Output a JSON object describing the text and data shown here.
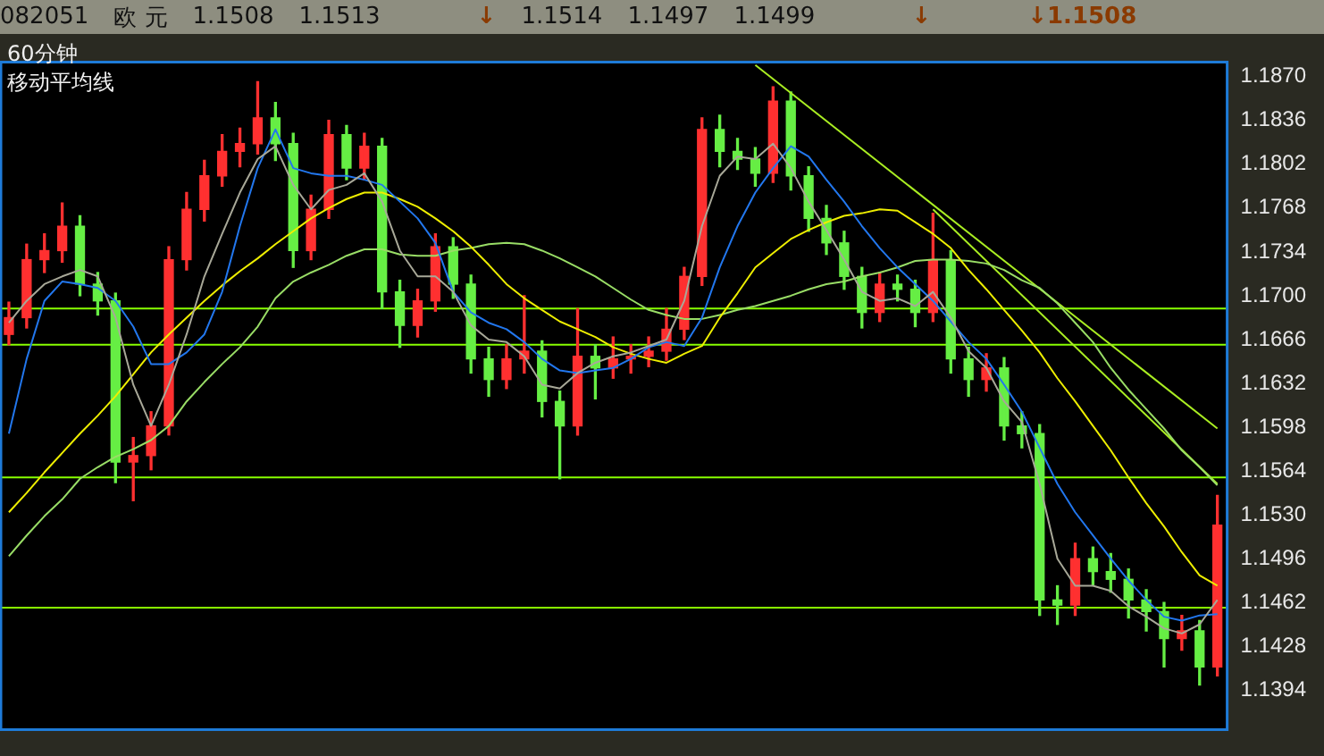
{
  "chart_data": {
    "type": "candlestick",
    "title": "60分钟",
    "subtitle": "移动平均线",
    "annotations": [
      "082051",
      "欧 元",
      "1.1508",
      "1.1513",
      "↓",
      "1.1514",
      "1.1497",
      "1.1499",
      "↓",
      "↓1.1508"
    ],
    "categories": [
      null,
      null,
      null,
      null,
      null,
      null,
      null,
      null,
      null,
      null,
      null,
      null,
      null,
      null,
      null,
      null,
      null,
      null,
      null,
      null,
      null,
      null,
      null,
      null,
      null,
      null,
      null,
      null,
      null,
      null,
      null,
      null,
      null,
      null,
      null,
      null,
      null,
      null,
      null,
      null,
      null,
      null,
      null,
      null,
      null,
      null,
      null,
      null,
      null,
      null,
      null,
      null,
      null,
      null,
      null,
      null,
      null,
      null,
      null,
      null,
      null,
      null,
      null,
      null,
      null,
      null,
      null,
      null,
      null
    ],
    "ohlc": [
      [
        1.167,
        1.1695,
        1.1662,
        1.1683
      ],
      [
        1.1683,
        1.174,
        1.1675,
        1.1728
      ],
      [
        1.1728,
        1.1748,
        1.1718,
        1.1735
      ],
      [
        1.1735,
        1.1772,
        1.1726,
        1.1754
      ],
      [
        1.1754,
        1.1762,
        1.17,
        1.1709
      ],
      [
        1.1709,
        1.1718,
        1.1685,
        1.1696
      ],
      [
        1.1696,
        1.1702,
        1.1555,
        1.1571
      ],
      [
        1.1571,
        1.159,
        1.1541,
        1.1576
      ],
      [
        1.1576,
        1.161,
        1.1565,
        1.1599
      ],
      [
        1.1599,
        1.1738,
        1.1592,
        1.1728
      ],
      [
        1.1728,
        1.178,
        1.172,
        1.1767
      ],
      [
        1.1767,
        1.1805,
        1.1758,
        1.1793
      ],
      [
        1.1793,
        1.1825,
        1.1785,
        1.1812
      ],
      [
        1.1812,
        1.183,
        1.18,
        1.1818
      ],
      [
        1.1818,
        1.1866,
        1.181,
        1.1838
      ],
      [
        1.1838,
        1.185,
        1.1805,
        1.1818
      ],
      [
        1.1818,
        1.1826,
        1.1722,
        1.1735
      ],
      [
        1.1735,
        1.1778,
        1.1728,
        1.1767
      ],
      [
        1.1767,
        1.1836,
        1.176,
        1.1825
      ],
      [
        1.1825,
        1.1832,
        1.179,
        1.1799
      ],
      [
        1.1799,
        1.1826,
        1.179,
        1.1816
      ],
      [
        1.1816,
        1.1822,
        1.169,
        1.1703
      ],
      [
        1.1703,
        1.1712,
        1.166,
        1.1677
      ],
      [
        1.1677,
        1.1705,
        1.1668,
        1.1696
      ],
      [
        1.1696,
        1.1748,
        1.1688,
        1.1738
      ],
      [
        1.1738,
        1.1745,
        1.1698,
        1.1709
      ],
      [
        1.1709,
        1.1716,
        1.164,
        1.1651
      ],
      [
        1.1651,
        1.166,
        1.1622,
        1.1635
      ],
      [
        1.1635,
        1.1662,
        1.1628,
        1.1651
      ],
      [
        1.1651,
        1.17,
        1.164,
        1.1657
      ],
      [
        1.1657,
        1.1665,
        1.1606,
        1.1618
      ],
      [
        1.1618,
        1.1626,
        1.1558,
        1.1599
      ],
      [
        1.1599,
        1.169,
        1.1592,
        1.1653
      ],
      [
        1.1653,
        1.1662,
        1.162,
        1.1644
      ],
      [
        1.1644,
        1.1668,
        1.1636,
        1.1651
      ],
      [
        1.1651,
        1.1662,
        1.164,
        1.1653
      ],
      [
        1.1653,
        1.1668,
        1.1645,
        1.1657
      ],
      [
        1.1657,
        1.169,
        1.165,
        1.1674
      ],
      [
        1.1674,
        1.1722,
        1.1666,
        1.1715
      ],
      [
        1.1715,
        1.1838,
        1.1708,
        1.1829
      ],
      [
        1.1829,
        1.184,
        1.18,
        1.1812
      ],
      [
        1.1812,
        1.1822,
        1.1798,
        1.1806
      ],
      [
        1.1806,
        1.1815,
        1.1785,
        1.1795
      ],
      [
        1.1795,
        1.1862,
        1.1788,
        1.1851
      ],
      [
        1.1851,
        1.1858,
        1.1782,
        1.1793
      ],
      [
        1.1793,
        1.18,
        1.175,
        1.176
      ],
      [
        1.176,
        1.177,
        1.1732,
        1.1741
      ],
      [
        1.1741,
        1.175,
        1.1705,
        1.1715
      ],
      [
        1.1715,
        1.1722,
        1.1675,
        1.1687
      ],
      [
        1.1687,
        1.1718,
        1.168,
        1.1709
      ],
      [
        1.1709,
        1.1716,
        1.1696,
        1.1705
      ],
      [
        1.1705,
        1.1712,
        1.1676,
        1.1687
      ],
      [
        1.1687,
        1.1764,
        1.168,
        1.1728
      ],
      [
        1.1728,
        1.1735,
        1.164,
        1.1651
      ],
      [
        1.1651,
        1.166,
        1.1622,
        1.1635
      ],
      [
        1.1635,
        1.1655,
        1.1626,
        1.1644
      ],
      [
        1.1644,
        1.1652,
        1.1588,
        1.1599
      ],
      [
        1.1599,
        1.161,
        1.1582,
        1.1593
      ],
      [
        1.1593,
        1.16,
        1.1452,
        1.1464
      ],
      [
        1.1464,
        1.1475,
        1.1445,
        1.146
      ],
      [
        1.146,
        1.1508,
        1.1452,
        1.1496
      ],
      [
        1.1496,
        1.1505,
        1.1475,
        1.1486
      ],
      [
        1.1486,
        1.15,
        1.147,
        1.148
      ],
      [
        1.148,
        1.1488,
        1.145,
        1.1464
      ],
      [
        1.1464,
        1.1472,
        1.144,
        1.1455
      ],
      [
        1.1455,
        1.1462,
        1.1412,
        1.1434
      ],
      [
        1.1434,
        1.1452,
        1.1425,
        1.144
      ],
      [
        1.144,
        1.1448,
        1.1398,
        1.1412
      ],
      [
        1.1412,
        1.1545,
        1.1405,
        1.1522
      ]
    ],
    "colors": [
      "#ff3030",
      "#ff3030",
      "#ff3030",
      "#ff3030",
      "#66ee44",
      "#66ee44",
      "#66ee44",
      "#ff3030",
      "#ff3030",
      "#ff3030",
      "#ff3030",
      "#ff3030",
      "#ff3030",
      "#ff3030",
      "#ff3030",
      "#66ee44",
      "#66ee44",
      "#ff3030",
      "#ff3030",
      "#66ee44",
      "#ff3030",
      "#66ee44",
      "#66ee44",
      "#ff3030",
      "#ff3030",
      "#66ee44",
      "#66ee44",
      "#66ee44",
      "#ff3030",
      "#ff3030",
      "#66ee44",
      "#66ee44",
      "#ff3030",
      "#66ee44",
      "#ff3030",
      "#ff3030",
      "#ff3030",
      "#ff3030",
      "#ff3030",
      "#ff3030",
      "#66ee44",
      "#66ee44",
      "#66ee44",
      "#ff3030",
      "#66ee44",
      "#66ee44",
      "#66ee44",
      "#66ee44",
      "#66ee44",
      "#ff3030",
      "#66ee44",
      "#66ee44",
      "#ff3030",
      "#66ee44",
      "#66ee44",
      "#ff3030",
      "#66ee44",
      "#66ee44",
      "#66ee44",
      "#66ee44",
      "#ff3030",
      "#66ee44",
      "#66ee44",
      "#66ee44",
      "#66ee44",
      "#66ee44",
      "#ff3030",
      "#66ee44",
      "#ff3030"
    ],
    "series": [
      {
        "type": "line",
        "color": "#a8a898",
        "values": [
          1.1679,
          1.1696,
          1.1709,
          1.1715,
          1.172,
          1.1715,
          1.1683,
          1.1631,
          1.1599,
          1.1631,
          1.167,
          1.1715,
          1.1748,
          1.178,
          1.1806,
          1.1816,
          1.1786,
          1.1767,
          1.1782,
          1.1786,
          1.1795,
          1.1773,
          1.1735,
          1.1715,
          1.1715,
          1.1703,
          1.1677,
          1.1666,
          1.1664,
          1.1653,
          1.1631,
          1.1628,
          1.164,
          1.1648,
          1.1653,
          1.1656,
          1.1661,
          1.1666,
          1.1696,
          1.1754,
          1.1793,
          1.1808,
          1.1806,
          1.1818,
          1.1799,
          1.1773,
          1.1751,
          1.1728,
          1.1703,
          1.1696,
          1.1698,
          1.1692,
          1.1703,
          1.1683,
          1.1657,
          1.1644,
          1.1618,
          1.1602,
          1.1554,
          1.1496,
          1.1475,
          1.1475,
          1.1471,
          1.1459,
          1.1451,
          1.1442,
          1.1438,
          1.1445,
          1.1464
        ]
      },
      {
        "type": "line",
        "color": "#2277ee",
        "values": [
          1.1593,
          1.1651,
          1.1696,
          1.1711,
          1.1709,
          1.1706,
          1.1696,
          1.1676,
          1.1647,
          1.1647,
          1.1656,
          1.167,
          1.1703,
          1.1754,
          1.1799,
          1.1829,
          1.1799,
          1.1795,
          1.1793,
          1.1793,
          1.179,
          1.1786,
          1.1773,
          1.176,
          1.1741,
          1.1703,
          1.1687,
          1.1679,
          1.1674,
          1.1664,
          1.1651,
          1.1642,
          1.164,
          1.1642,
          1.1644,
          1.1651,
          1.166,
          1.1664,
          1.1661,
          1.1683,
          1.1722,
          1.1754,
          1.178,
          1.1799,
          1.1816,
          1.1808,
          1.179,
          1.1773,
          1.1754,
          1.1737,
          1.1722,
          1.1709,
          1.1696,
          1.168,
          1.1664,
          1.1651,
          1.1631,
          1.161,
          1.1582,
          1.1554,
          1.1532,
          1.1514,
          1.1496,
          1.1479,
          1.1464,
          1.1451,
          1.1448,
          1.1452,
          1.1453
        ]
      },
      {
        "type": "line",
        "color": "#eeee00",
        "values": [
          1.1532,
          1.1547,
          1.1563,
          1.1578,
          1.1593,
          1.1607,
          1.1622,
          1.1639,
          1.1656,
          1.167,
          1.1683,
          1.1696,
          1.1708,
          1.1719,
          1.1729,
          1.174,
          1.175,
          1.176,
          1.1768,
          1.1775,
          1.178,
          1.178,
          1.1775,
          1.1769,
          1.176,
          1.175,
          1.1738,
          1.1724,
          1.1709,
          1.1698,
          1.1689,
          1.168,
          1.1674,
          1.1668,
          1.166,
          1.1655,
          1.1651,
          1.1648,
          1.1655,
          1.1661,
          1.1683,
          1.1702,
          1.1722,
          1.1733,
          1.1744,
          1.1751,
          1.1757,
          1.1762,
          1.1764,
          1.1767,
          1.1766,
          1.1757,
          1.1748,
          1.1737,
          1.172,
          1.1705,
          1.1689,
          1.1673,
          1.1656,
          1.1636,
          1.1618,
          1.1599,
          1.158,
          1.1559,
          1.1539,
          1.1521,
          1.1501,
          1.1483,
          1.1475
        ]
      },
      {
        "type": "line",
        "color": "#99dd66",
        "values": [
          1.1498,
          1.1514,
          1.1529,
          1.1542,
          1.1558,
          1.1567,
          1.1575,
          1.1581,
          1.1588,
          1.1599,
          1.1618,
          1.1633,
          1.1647,
          1.166,
          1.1676,
          1.1698,
          1.1711,
          1.1718,
          1.1724,
          1.1731,
          1.1736,
          1.1736,
          1.1732,
          1.1731,
          1.1731,
          1.1735,
          1.1737,
          1.174,
          1.1741,
          1.174,
          1.1735,
          1.1729,
          1.1722,
          1.1715,
          1.1706,
          1.1697,
          1.1689,
          1.1685,
          1.1682,
          1.1682,
          1.1685,
          1.1689,
          1.1692,
          1.1696,
          1.17,
          1.1705,
          1.1709,
          1.1711,
          1.1715,
          1.1718,
          1.1722,
          1.1727,
          1.1728,
          1.1728,
          1.1727,
          1.1725,
          1.172,
          1.1712,
          1.1706,
          1.1694,
          1.1679,
          1.1664,
          1.1644,
          1.1627,
          1.1612,
          1.1597,
          1.158,
          1.1567,
          1.1553
        ]
      },
      {
        "type": "line",
        "color": "#aaee22",
        "values": [
          null,
          null,
          null,
          null,
          null,
          null,
          null,
          null,
          null,
          null,
          null,
          null,
          null,
          null,
          null,
          null,
          null,
          null,
          null,
          null,
          null,
          null,
          null,
          null,
          null,
          null,
          null,
          null,
          null,
          null,
          null,
          null,
          null,
          null,
          null,
          null,
          null,
          null,
          null,
          null,
          null,
          null,
          1.1879,
          null,
          null,
          null,
          null,
          null,
          null,
          null,
          null,
          null,
          null,
          null,
          null,
          null,
          null,
          null,
          null,
          null,
          null,
          null,
          null,
          null,
          null,
          null,
          null,
          null,
          1.1597
        ]
      },
      {
        "type": "line",
        "color": "#aaee22",
        "values": [
          null,
          null,
          null,
          null,
          null,
          null,
          null,
          null,
          null,
          null,
          null,
          null,
          null,
          null,
          null,
          null,
          null,
          null,
          null,
          null,
          null,
          null,
          null,
          null,
          null,
          null,
          null,
          null,
          null,
          null,
          null,
          null,
          null,
          null,
          null,
          null,
          null,
          null,
          null,
          null,
          null,
          null,
          null,
          null,
          null,
          null,
          null,
          null,
          null,
          null,
          null,
          null,
          1.1767,
          null,
          null,
          null,
          null,
          null,
          null,
          null,
          null,
          null,
          null,
          null,
          null,
          null,
          null,
          null,
          1.1554
        ]
      }
    ],
    "ylim": [
      1.1364,
      1.1882
    ],
    "yticks": [
      {
        "value": 1.187,
        "label": "1.1870"
      },
      1.1836,
      1.1802,
      1.1768,
      1.1734,
      {
        "value": 1.17,
        "label": "1.1700"
      },
      1.1666,
      1.1632,
      1.1598,
      1.1564,
      {
        "value": 1.153,
        "label": "1.1530"
      },
      1.1496,
      1.1462,
      1.1428,
      1.1394
    ],
    "ref_lines": [
      {
        "axis": "y",
        "value": 1.169,
        "color": "#88ff00"
      },
      {
        "axis": "y",
        "value": 1.1662,
        "color": "#88ff00"
      },
      {
        "axis": "y",
        "value": 1.1559,
        "color": "#88ff00"
      },
      {
        "axis": "y",
        "value": 1.1458,
        "color": "#88ff00"
      }
    ],
    "tick_labels": "y",
    "marker": "none",
    "line_style": "solid"
  }
}
